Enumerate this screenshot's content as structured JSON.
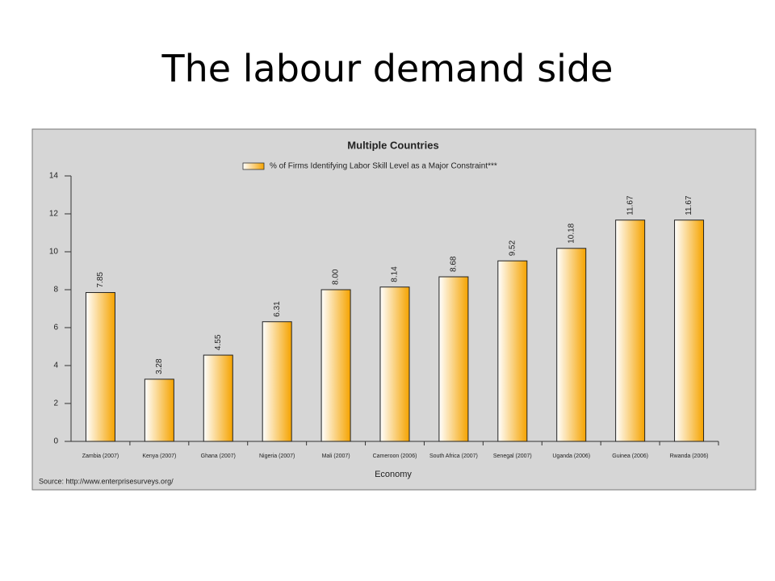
{
  "slide_title": "The labour demand side",
  "chart_data": {
    "type": "bar",
    "title": "Multiple Countries",
    "x_label": "Economy",
    "source": "Source: http://www.enterprisesurveys.org/",
    "categories": [
      "Zambia (2007)",
      "Kenya (2007)",
      "Ghana (2007)",
      "Nigeria (2007)",
      "Mali (2007)",
      "Cameroon (2006)",
      "South Africa (2007)",
      "Senegal (2007)",
      "Uganda (2006)",
      "Guinea (2006)",
      "Rwanda (2006)"
    ],
    "series": [
      {
        "name": "% of Firms Identifying Labor Skill Level as a Major Constraint***",
        "color": "#f5a300",
        "values": [
          7.85,
          3.28,
          4.55,
          6.31,
          8.0,
          8.14,
          8.68,
          9.52,
          10.18,
          11.67,
          11.67
        ],
        "value_labels": [
          "7.85",
          "3.28",
          "4.55",
          "6.31",
          "8.00",
          "8.14",
          "8.68",
          "9.52",
          "10.18",
          "11.67",
          "11.67"
        ]
      }
    ],
    "ylim": [
      0,
      14
    ],
    "yticks": [
      0,
      2,
      4,
      6,
      8,
      10,
      12,
      14
    ],
    "grid": false
  }
}
